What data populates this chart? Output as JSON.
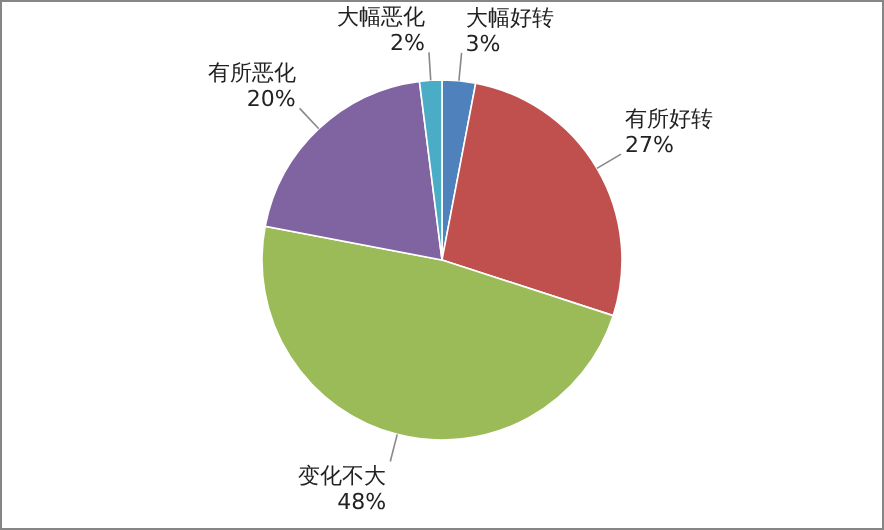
{
  "chart_data": {
    "type": "pie",
    "categories": [
      "大幅好转",
      "有所好转",
      "变化不大",
      "有所恶化",
      "大幅恶化"
    ],
    "values": [
      3,
      27,
      48,
      20,
      2
    ],
    "colors": [
      "#4f81bd",
      "#c0504d",
      "#9bbb59",
      "#8064a2",
      "#4bacc6"
    ],
    "value_labels": [
      "3%",
      "27%",
      "48%",
      "20%",
      "2%"
    ],
    "legend": false
  }
}
